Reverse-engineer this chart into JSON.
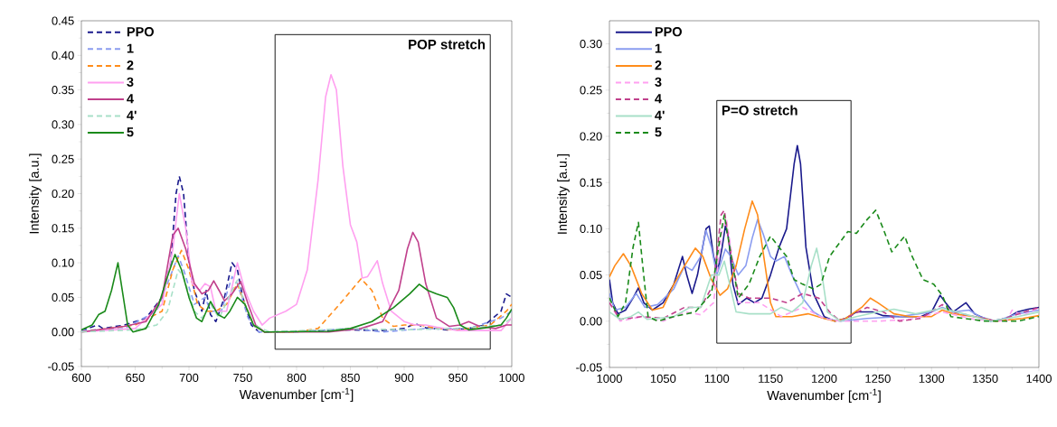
{
  "chart_data": [
    {
      "type": "line",
      "xlabel": "Wavenumber [cm$^{-1}$]",
      "ylabel": "Intensity [a.u.]",
      "xlim": [
        600,
        1000
      ],
      "xticks": [
        600,
        650,
        700,
        750,
        800,
        850,
        900,
        950,
        1000
      ],
      "ylim": [
        -0.05,
        0.45
      ],
      "yticks": [
        {
          "value": -0.05,
          "label": "-0.05"
        },
        {
          "value": 0,
          "label": "0.00"
        },
        {
          "value": 0.05,
          "label": "0.05"
        },
        {
          "value": 0.1,
          "label": "0.10"
        },
        {
          "value": 0.15,
          "label": "0.15"
        },
        {
          "value": 0.2,
          "label": "0.20"
        },
        {
          "value": 0.25,
          "label": "0.25"
        },
        {
          "value": 0.3,
          "label": "0.30"
        },
        {
          "value": 0.35,
          "label": "0.35"
        },
        {
          "value": 0.4,
          "label": "0.40"
        },
        {
          "value": 0.45,
          "label": "0.45"
        }
      ],
      "legend": "top left",
      "bands": [
        {
          "axis": "x",
          "from": 780,
          "to": 980,
          "label": "POP stretch"
        }
      ],
      "series": [
        {
          "name": "PPO",
          "color": "#1a1a8c",
          "line_style": "dashed",
          "x": [
            600,
            615,
            620,
            640,
            660,
            675,
            683,
            688,
            691,
            695,
            700,
            705,
            712,
            716,
            720,
            725,
            733,
            740,
            745,
            750,
            758,
            765,
            780,
            850,
            880,
            900,
            910,
            920,
            940,
            960,
            975,
            990,
            995,
            1000
          ],
          "values": [
            0.002,
            0.01,
            0.005,
            0.01,
            0.02,
            0.05,
            0.1,
            0.2,
            0.225,
            0.2,
            0.1,
            0.06,
            0.03,
            0.06,
            0.025,
            0.015,
            0.05,
            0.1,
            0.09,
            0.05,
            0.01,
            0.0,
            0.0,
            0.003,
            0.002,
            0.005,
            0.012,
            0.006,
            0.003,
            0.005,
            0.01,
            0.03,
            0.055,
            0.05
          ]
        },
        {
          "name": "1",
          "color": "#8a9cf0",
          "line_style": "dashed",
          "x": [
            600,
            640,
            670,
            685,
            690,
            695,
            705,
            715,
            720,
            730,
            740,
            745,
            755,
            765,
            800,
            850,
            880,
            920,
            960,
            990,
            1000
          ],
          "values": [
            0.002,
            0.005,
            0.03,
            0.09,
            0.11,
            0.09,
            0.04,
            0.05,
            0.03,
            0.03,
            0.08,
            0.07,
            0.02,
            0.0,
            0.0,
            0.005,
            0.0,
            0.005,
            0.005,
            0.02,
            0.03
          ]
        },
        {
          "name": "2",
          "color": "#ff8c1a",
          "line_style": "dashed",
          "x": [
            600,
            650,
            675,
            685,
            693,
            700,
            708,
            716,
            725,
            735,
            745,
            752,
            760,
            770,
            800,
            820,
            840,
            860,
            870,
            880,
            890,
            900,
            915,
            930,
            950,
            980,
            995,
            1000
          ],
          "values": [
            0.0,
            0.01,
            0.03,
            0.09,
            0.118,
            0.09,
            0.04,
            0.03,
            0.03,
            0.04,
            0.07,
            0.04,
            0.01,
            0.0,
            0.0,
            0.005,
            0.04,
            0.077,
            0.06,
            0.02,
            0.008,
            0.01,
            0.01,
            0.005,
            0.003,
            0.01,
            0.03,
            0.04
          ]
        },
        {
          "name": "3",
          "color": "#ffa0f0",
          "line_style": "solid",
          "x": [
            600,
            620,
            650,
            675,
            685,
            691,
            697,
            703,
            710,
            715,
            720,
            725,
            735,
            745,
            752,
            760,
            768,
            775,
            790,
            800,
            810,
            820,
            827,
            832,
            837,
            843,
            850,
            856,
            861,
            866,
            875,
            880,
            888,
            900,
            910,
            920,
            930,
            950,
            990,
            1000
          ],
          "values": [
            0.0,
            0.002,
            0.005,
            0.04,
            0.12,
            0.2,
            0.15,
            0.07,
            0.06,
            0.07,
            0.065,
            0.03,
            0.03,
            0.1,
            0.06,
            0.03,
            0.01,
            0.02,
            0.03,
            0.04,
            0.09,
            0.22,
            0.34,
            0.372,
            0.35,
            0.24,
            0.155,
            0.13,
            0.078,
            0.08,
            0.103,
            0.07,
            0.03,
            0.015,
            0.01,
            0.01,
            0.007,
            0.002,
            0.002,
            0.02
          ]
        },
        {
          "name": "4",
          "color": "#c0408c",
          "line_style": "solid",
          "x": [
            600,
            640,
            660,
            675,
            685,
            690,
            697,
            705,
            712,
            718,
            723,
            728,
            733,
            740,
            748,
            755,
            762,
            770,
            830,
            860,
            880,
            895,
            903,
            908,
            913,
            920,
            930,
            942,
            952,
            960,
            970,
            985,
            995,
            1000
          ],
          "values": [
            0.0,
            0.008,
            0.015,
            0.05,
            0.14,
            0.15,
            0.12,
            0.07,
            0.055,
            0.06,
            0.074,
            0.06,
            0.045,
            0.055,
            0.073,
            0.04,
            0.01,
            0.0,
            0.0,
            0.005,
            0.015,
            0.06,
            0.12,
            0.144,
            0.13,
            0.07,
            0.02,
            0.008,
            0.01,
            0.015,
            0.008,
            0.005,
            0.01,
            0.01
          ]
        },
        {
          "name": "4'",
          "color": "#a8e0c8",
          "line_style": "dashed",
          "x": [
            600,
            650,
            670,
            680,
            690,
            695,
            705,
            712,
            720,
            728,
            740,
            745,
            752,
            760,
            775,
            850,
            900,
            950,
            990,
            1000
          ],
          "values": [
            0.0,
            0.003,
            0.01,
            0.03,
            0.09,
            0.08,
            0.03,
            0.02,
            0.04,
            0.02,
            0.06,
            0.075,
            0.04,
            0.01,
            0.0,
            0.005,
            0.003,
            0.005,
            0.01,
            0.02
          ]
        },
        {
          "name": "5",
          "color": "#1a8a1a",
          "line_style": "solid",
          "x": [
            600,
            610,
            616,
            622,
            628,
            634,
            638,
            643,
            648,
            660,
            672,
            680,
            687,
            693,
            700,
            707,
            712,
            720,
            727,
            733,
            738,
            745,
            752,
            760,
            770,
            830,
            850,
            870,
            890,
            905,
            914,
            922,
            930,
            940,
            946,
            952,
            960,
            975,
            990,
            995,
            1000
          ],
          "values": [
            0.003,
            0.01,
            0.025,
            0.03,
            0.06,
            0.1,
            0.06,
            0.01,
            0.0,
            0.005,
            0.04,
            0.08,
            0.112,
            0.09,
            0.05,
            0.02,
            0.015,
            0.044,
            0.025,
            0.02,
            0.03,
            0.05,
            0.04,
            0.01,
            0.0,
            0.001,
            0.005,
            0.015,
            0.035,
            0.055,
            0.069,
            0.06,
            0.055,
            0.05,
            0.035,
            0.01,
            0.003,
            0.006,
            0.01,
            0.02,
            0.033
          ]
        }
      ]
    },
    {
      "type": "line",
      "xlabel": "Wavenumber [cm$^{-1}$]",
      "ylabel": "Intensity [a.u.]",
      "xlim": [
        1000,
        1400
      ],
      "xticks": [
        1000,
        1050,
        1100,
        1150,
        1200,
        1250,
        1300,
        1350,
        1400
      ],
      "ylim": [
        -0.05,
        0.325
      ],
      "yticks": [
        {
          "value": -0.05,
          "label": "-0.05"
        },
        {
          "value": 0,
          "label": "0.00"
        },
        {
          "value": 0.05,
          "label": "0.05"
        },
        {
          "value": 0.1,
          "label": "0.10"
        },
        {
          "value": 0.15,
          "label": "0.15"
        },
        {
          "value": 0.2,
          "label": "0.20"
        },
        {
          "value": 0.25,
          "label": "0.25"
        },
        {
          "value": 0.3,
          "label": "0.30"
        }
      ],
      "legend": "top left",
      "bands": [
        {
          "axis": "x",
          "from": 1100,
          "to": 1225,
          "label": "P=O stretch"
        }
      ],
      "series": [
        {
          "name": "PPO",
          "color": "#1a1a8c",
          "line_style": "solid",
          "x": [
            1000,
            1003,
            1008,
            1015,
            1022,
            1027,
            1032,
            1040,
            1050,
            1060,
            1068,
            1072,
            1077,
            1082,
            1090,
            1093,
            1097,
            1101,
            1105,
            1108,
            1111,
            1115,
            1120,
            1128,
            1135,
            1142,
            1150,
            1158,
            1165,
            1172,
            1175,
            1178,
            1183,
            1190,
            1200,
            1210,
            1220,
            1230,
            1245,
            1255,
            1270,
            1290,
            1300,
            1308,
            1313,
            1320,
            1332,
            1340,
            1355,
            1370,
            1380,
            1390,
            1400
          ],
          "values": [
            0.045,
            0.02,
            0.008,
            0.012,
            0.025,
            0.036,
            0.02,
            0.012,
            0.02,
            0.04,
            0.07,
            0.05,
            0.03,
            0.05,
            0.1,
            0.103,
            0.07,
            0.055,
            0.08,
            0.103,
            0.09,
            0.04,
            0.018,
            0.025,
            0.02,
            0.025,
            0.05,
            0.08,
            0.1,
            0.17,
            0.19,
            0.17,
            0.08,
            0.03,
            0.005,
            0.0,
            0.003,
            0.01,
            0.01,
            0.006,
            0.005,
            0.005,
            0.01,
            0.028,
            0.02,
            0.01,
            0.02,
            0.008,
            0.0,
            0.003,
            0.01,
            0.013,
            0.015
          ]
        },
        {
          "name": "1",
          "color": "#8a9cf0",
          "line_style": "solid",
          "x": [
            1000,
            1005,
            1015,
            1025,
            1033,
            1045,
            1060,
            1070,
            1077,
            1085,
            1090,
            1095,
            1100,
            1108,
            1113,
            1120,
            1127,
            1133,
            1138,
            1143,
            1150,
            1155,
            1163,
            1170,
            1180,
            1190,
            1200,
            1215,
            1240,
            1270,
            1300,
            1310,
            1320,
            1335,
            1345,
            1360,
            1380,
            1400
          ],
          "values": [
            0.03,
            0.012,
            0.015,
            0.03,
            0.015,
            0.018,
            0.035,
            0.06,
            0.055,
            0.07,
            0.098,
            0.08,
            0.05,
            0.078,
            0.07,
            0.05,
            0.06,
            0.09,
            0.11,
            0.095,
            0.07,
            0.065,
            0.07,
            0.05,
            0.025,
            0.01,
            0.003,
            0.0,
            0.003,
            0.005,
            0.01,
            0.015,
            0.01,
            0.012,
            0.005,
            0.0,
            0.008,
            0.012
          ]
        },
        {
          "name": "2",
          "color": "#ff8c1a",
          "line_style": "solid",
          "x": [
            1000,
            1005,
            1013,
            1020,
            1030,
            1040,
            1050,
            1060,
            1070,
            1080,
            1087,
            1095,
            1103,
            1110,
            1118,
            1126,
            1133,
            1138,
            1145,
            1150,
            1155,
            1170,
            1185,
            1200,
            1210,
            1220,
            1235,
            1243,
            1250,
            1265,
            1280,
            1300,
            1310,
            1320,
            1340,
            1360,
            1385,
            1400
          ],
          "values": [
            0.048,
            0.06,
            0.073,
            0.06,
            0.03,
            0.012,
            0.015,
            0.04,
            0.06,
            0.079,
            0.07,
            0.045,
            0.028,
            0.035,
            0.06,
            0.1,
            0.13,
            0.115,
            0.06,
            0.02,
            0.005,
            0.005,
            0.008,
            0.003,
            0.0,
            0.003,
            0.015,
            0.025,
            0.02,
            0.008,
            0.005,
            0.005,
            0.012,
            0.008,
            0.005,
            0.0,
            0.003,
            0.006
          ]
        },
        {
          "name": "3",
          "color": "#ffa0f0",
          "line_style": "dashed",
          "x": [
            1000,
            1010,
            1030,
            1050,
            1070,
            1085,
            1097,
            1105,
            1109,
            1113,
            1120,
            1140,
            1160,
            1180,
            1200,
            1215,
            1250,
            1280,
            1310,
            1340,
            1370,
            1375,
            1385,
            1400
          ],
          "values": [
            0.02,
            0.0,
            0.005,
            0.0,
            0.01,
            0.007,
            0.02,
            0.1,
            0.11,
            0.08,
            0.02,
            0.02,
            0.005,
            0.015,
            0.003,
            0.0,
            0.0,
            0.002,
            0.01,
            0.002,
            0.0,
            0.012,
            0.006,
            0.015
          ]
        },
        {
          "name": "4",
          "color": "#c0408c",
          "line_style": "dashed",
          "x": [
            1000,
            1010,
            1030,
            1050,
            1070,
            1085,
            1097,
            1104,
            1107,
            1112,
            1120,
            1130,
            1140,
            1150,
            1165,
            1180,
            1195,
            1205,
            1215,
            1240,
            1255,
            1270,
            1290,
            1310,
            1320,
            1340,
            1360,
            1400
          ],
          "values": [
            0.02,
            0.002,
            0.005,
            0.003,
            0.015,
            0.015,
            0.04,
            0.115,
            0.12,
            0.08,
            0.03,
            0.025,
            0.025,
            0.025,
            0.02,
            0.03,
            0.025,
            0.01,
            0.0,
            0.015,
            0.01,
            0.0,
            0.003,
            0.018,
            0.01,
            0.005,
            0.0,
            0.015
          ]
        },
        {
          "name": "4'",
          "color": "#a8e0c8",
          "line_style": "solid",
          "x": [
            1000,
            1010,
            1020,
            1027,
            1035,
            1060,
            1075,
            1085,
            1095,
            1102,
            1107,
            1112,
            1118,
            1130,
            1150,
            1160,
            1170,
            1180,
            1188,
            1193,
            1198,
            1203,
            1215,
            1230,
            1250,
            1265,
            1285,
            1310,
            1330,
            1355,
            1380,
            1400
          ],
          "values": [
            0.01,
            0.002,
            0.005,
            0.01,
            0.002,
            0.005,
            0.015,
            0.015,
            0.05,
            0.05,
            0.065,
            0.04,
            0.01,
            0.008,
            0.008,
            0.015,
            0.01,
            0.02,
            0.06,
            0.079,
            0.05,
            0.01,
            0.0,
            0.005,
            0.01,
            0.013,
            0.008,
            0.014,
            0.008,
            0.0,
            0.005,
            0.01
          ]
        },
        {
          "name": "5",
          "color": "#1a8a1a",
          "line_style": "dashed",
          "x": [
            1000,
            1008,
            1015,
            1022,
            1027,
            1031,
            1036,
            1045,
            1060,
            1080,
            1095,
            1103,
            1107,
            1112,
            1120,
            1130,
            1140,
            1150,
            1158,
            1165,
            1172,
            1180,
            1190,
            1197,
            1205,
            1222,
            1230,
            1240,
            1248,
            1255,
            1263,
            1270,
            1275,
            1282,
            1292,
            1302,
            1310,
            1318,
            1330,
            1350,
            1380,
            1400
          ],
          "values": [
            0.025,
            0.005,
            0.02,
            0.08,
            0.107,
            0.06,
            0.005,
            0.0,
            0.005,
            0.01,
            0.03,
            0.09,
            0.115,
            0.08,
            0.025,
            0.04,
            0.07,
            0.092,
            0.08,
            0.07,
            0.045,
            0.04,
            0.035,
            0.04,
            0.07,
            0.097,
            0.095,
            0.11,
            0.12,
            0.1,
            0.075,
            0.085,
            0.092,
            0.07,
            0.045,
            0.04,
            0.028,
            0.005,
            0.003,
            0.0,
            0.0,
            0.005
          ]
        }
      ]
    }
  ]
}
